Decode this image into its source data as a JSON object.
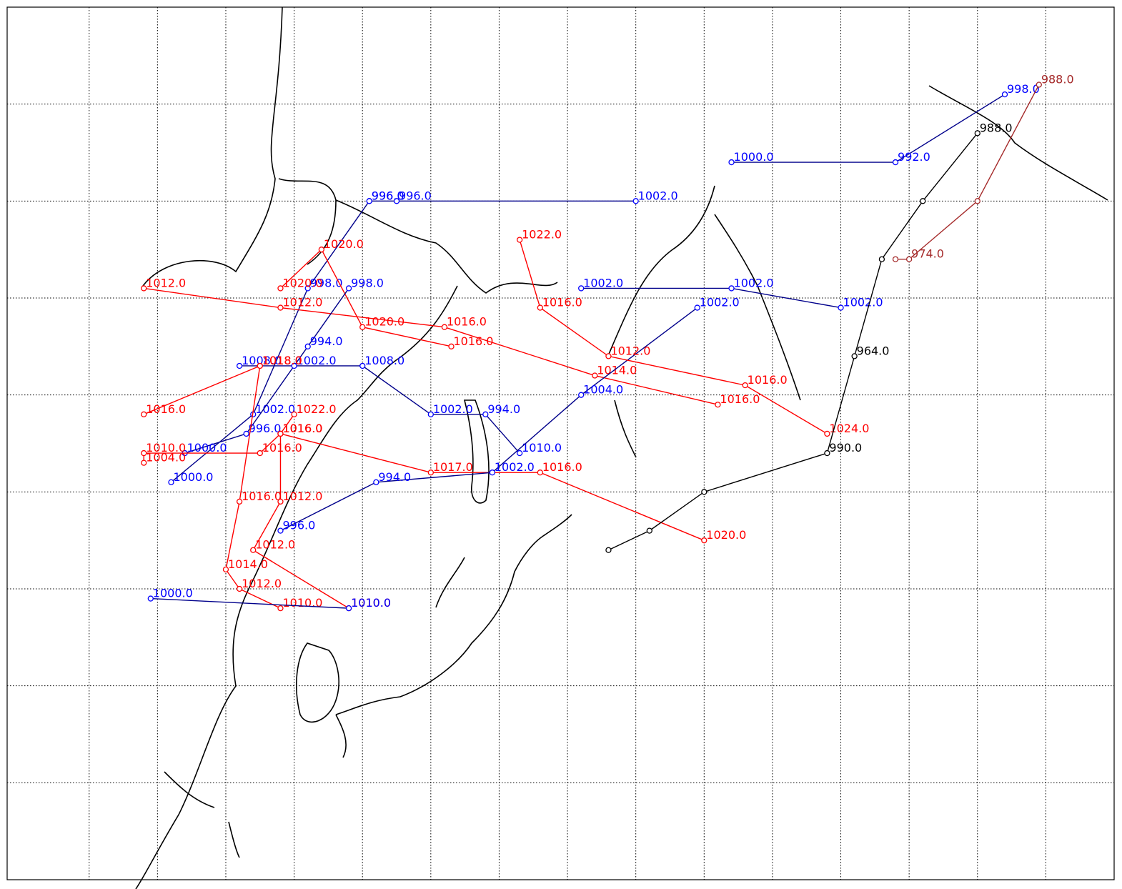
{
  "colors": {
    "blue": "#0000ff",
    "red": "#ff0000",
    "black": "#000000",
    "green": "#008000",
    "orange": "#ffa500",
    "purple": "#800080",
    "brown": "#a52a2a",
    "navy": "#00008b"
  },
  "map": {
    "projection": "cylindrical lon/lat",
    "graticule": "dotted",
    "frame": true
  },
  "tracks": [
    {
      "color": "blue",
      "points": [
        {
          "lon": 125.5,
          "lat": 55.0,
          "label": "996.0"
        },
        {
          "lon": 127.5,
          "lat": 55.0,
          "label": "996.0"
        },
        {
          "lon": 145.0,
          "lat": 55.0,
          "label": "1002.0"
        }
      ]
    },
    {
      "color": "blue",
      "points": [
        {
          "lon": 125.5,
          "lat": 55.0,
          "label": "996.0"
        },
        {
          "lon": 121.0,
          "lat": 50.5,
          "label": "998.0"
        },
        {
          "lon": 117.0,
          "lat": 44.0,
          "label": "1002.0"
        },
        {
          "lon": 111.0,
          "lat": 40.5,
          "label": "1000.0"
        }
      ]
    },
    {
      "color": "blue",
      "points": [
        {
          "lon": 152.0,
          "lat": 57.0,
          "label": "1000.0"
        },
        {
          "lon": 164.0,
          "lat": 57.0,
          "label": "992.0"
        },
        {
          "lon": 172.0,
          "lat": 60.5,
          "label": "998.0"
        }
      ]
    },
    {
      "color": "red",
      "points": [
        {
          "lon": 109.0,
          "lat": 50.5,
          "label": "1012.0"
        },
        {
          "lon": 119.0,
          "lat": 49.5,
          "label": "1012.0"
        },
        {
          "lon": 131.0,
          "lat": 48.5,
          "label": "1016.0"
        },
        {
          "lon": 142.0,
          "lat": 46.0,
          "label": "1014.0"
        },
        {
          "lon": 151.0,
          "lat": 44.5,
          "label": "1016.0"
        }
      ]
    },
    {
      "color": "red",
      "points": [
        {
          "lon": 119.0,
          "lat": 50.5,
          "label": "1020.0"
        },
        {
          "lon": 122.0,
          "lat": 52.5,
          "label": "1020.0"
        },
        {
          "lon": 125.0,
          "lat": 48.5,
          "label": "1020.0"
        },
        {
          "lon": 131.5,
          "lat": 47.5,
          "label": "1016.0"
        }
      ]
    },
    {
      "color": "blue",
      "points": [
        {
          "lon": 124.0,
          "lat": 50.5,
          "label": "998.0"
        },
        {
          "lon": 121.0,
          "lat": 47.5,
          "label": "994.0"
        },
        {
          "lon": 116.5,
          "lat": 43.0,
          "label": "996.0"
        },
        {
          "lon": 112.0,
          "lat": 42.0,
          "label": "1000.0"
        }
      ]
    },
    {
      "color": "blue",
      "points": [
        {
          "lon": 116.0,
          "lat": 46.5,
          "label": "1008.0"
        },
        {
          "lon": 120.0,
          "lat": 46.5,
          "label": "1002.0"
        },
        {
          "lon": 125.0,
          "lat": 46.5,
          "label": "1008.0"
        },
        {
          "lon": 130.0,
          "lat": 44.0,
          "label": "1002.0"
        },
        {
          "lon": 134.0,
          "lat": 44.0,
          "label": "994.0"
        },
        {
          "lon": 136.5,
          "lat": 42.0,
          "label": "1010.0"
        }
      ]
    },
    {
      "color": "red",
      "points": [
        {
          "lon": 117.5,
          "lat": 46.5,
          "label": "1018.0"
        },
        {
          "lon": 109.0,
          "lat": 44.0,
          "label": "1016.0"
        }
      ]
    },
    {
      "color": "red",
      "points": [
        {
          "lon": 117.5,
          "lat": 46.5,
          "label": "1018.0"
        },
        {
          "lon": 116.0,
          "lat": 39.5,
          "label": "1016.0"
        },
        {
          "lon": 115.0,
          "lat": 36.0,
          "label": "1014.0"
        },
        {
          "lon": 116.0,
          "lat": 35.0,
          "label": "1012.0"
        },
        {
          "lon": 119.0,
          "lat": 34.0,
          "label": "1010.0"
        }
      ]
    },
    {
      "color": "red",
      "points": [
        {
          "lon": 120.0,
          "lat": 44.0,
          "label": "1022.0"
        },
        {
          "lon": 119.0,
          "lat": 43.0,
          "label": "1016.0"
        },
        {
          "lon": 117.5,
          "lat": 42.0,
          "label": "1016.0"
        },
        {
          "lon": 109.0,
          "lat": 42.0,
          "label": "1010.0"
        },
        {
          "lon": 109.0,
          "lat": 41.5,
          "label": "1004.0"
        }
      ]
    },
    {
      "color": "red",
      "points": [
        {
          "lon": 119.0,
          "lat": 43.0,
          "label": "1016.0"
        },
        {
          "lon": 119.0,
          "lat": 39.5,
          "label": "1012.0"
        },
        {
          "lon": 117.0,
          "lat": 37.0,
          "label": "1012.0"
        },
        {
          "lon": 124.0,
          "lat": 34.0,
          "label": "1010.0"
        }
      ]
    },
    {
      "color": "blue",
      "points": [
        {
          "lon": 109.5,
          "lat": 34.5,
          "label": "1000.0"
        },
        {
          "lon": 124.0,
          "lat": 34.0,
          "label": "1010.0"
        }
      ]
    },
    {
      "color": "red",
      "points": [
        {
          "lon": 119.0,
          "lat": 43.0,
          "label": "1016.0"
        },
        {
          "lon": 130.0,
          "lat": 41.0,
          "label": "1017.0"
        },
        {
          "lon": 138.0,
          "lat": 41.0,
          "label": "1016.0"
        },
        {
          "lon": 150.0,
          "lat": 37.5,
          "label": "1020.0"
        }
      ]
    },
    {
      "color": "blue",
      "points": [
        {
          "lon": 119.0,
          "lat": 38.0,
          "label": "996.0"
        },
        {
          "lon": 126.0,
          "lat": 40.5,
          "label": "994.0"
        },
        {
          "lon": 134.5,
          "lat": 41.0,
          "label": "1002.0"
        },
        {
          "lon": 141.0,
          "lat": 45.0,
          "label": "1004.0"
        },
        {
          "lon": 149.5,
          "lat": 49.5,
          "label": "1002.0"
        }
      ]
    },
    {
      "color": "red",
      "points": [
        {
          "lon": 136.5,
          "lat": 53.0,
          "label": "1022.0"
        },
        {
          "lon": 138.0,
          "lat": 49.5,
          "label": "1016.0"
        },
        {
          "lon": 143.0,
          "lat": 47.0,
          "label": "1012.0"
        },
        {
          "lon": 153.0,
          "lat": 45.5,
          "label": "1016.0"
        },
        {
          "lon": 159.0,
          "lat": 43.0,
          "label": "1024.0"
        }
      ]
    },
    {
      "color": "blue",
      "points": [
        {
          "lon": 141.0,
          "lat": 50.5,
          "label": "1002.0"
        },
        {
          "lon": 152.0,
          "lat": 50.5,
          "label": "1002.0"
        },
        {
          "lon": 160.0,
          "lat": 49.5,
          "label": "1002.0"
        }
      ]
    },
    {
      "color": "black",
      "points": [
        {
          "lon": 170.0,
          "lat": 58.5,
          "label": "988.0"
        },
        {
          "lon": 166.0,
          "lat": 55.0,
          "label": ""
        },
        {
          "lon": 163.0,
          "lat": 52.0,
          "label": ""
        },
        {
          "lon": 161.0,
          "lat": 47.0,
          "label": "964.0"
        },
        {
          "lon": 159.0,
          "lat": 42.0,
          "label": "990.0"
        },
        {
          "lon": 150.0,
          "lat": 40.0,
          "label": ""
        },
        {
          "lon": 146.0,
          "lat": 38.0,
          "label": ""
        },
        {
          "lon": 143.0,
          "lat": 37.0,
          "label": ""
        }
      ]
    },
    {
      "color": "brown",
      "points": [
        {
          "lon": 174.5,
          "lat": 61.0,
          "label": "988.0"
        },
        {
          "lon": 170.0,
          "lat": 55.0,
          "label": ""
        },
        {
          "lon": 165.0,
          "lat": 52.0,
          "label": "974.0"
        },
        {
          "lon": 164.0,
          "lat": 52.0,
          "label": ""
        }
      ]
    }
  ]
}
